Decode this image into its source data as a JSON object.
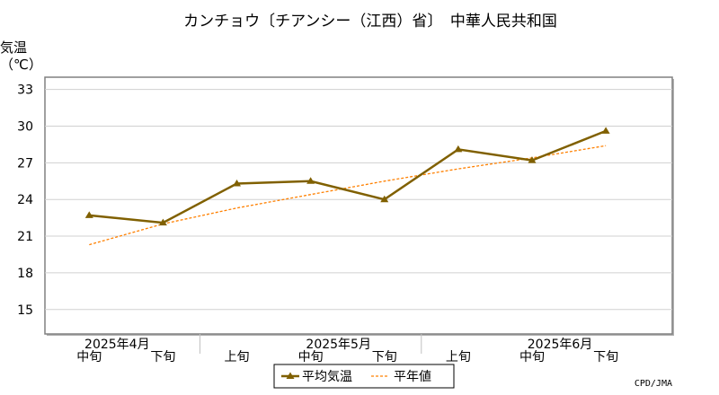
{
  "chart_data": {
    "type": "line",
    "title": "カンチョウ〔チアンシー（江西）省〕　中華人民共和国",
    "ylabel": "気温",
    "yunit": "（℃）",
    "ylim": [
      13,
      34
    ],
    "yticks": [
      15,
      18,
      21,
      24,
      27,
      30,
      33
    ],
    "grid": true,
    "categories": [
      "中旬",
      "下旬",
      "上旬",
      "中旬",
      "下旬",
      "上旬",
      "中旬",
      "下旬"
    ],
    "month_labels": [
      "2025年4月",
      "2025年5月",
      "2025年6月"
    ],
    "series": [
      {
        "name": "平均気温",
        "values": [
          22.7,
          22.1,
          25.3,
          25.5,
          24.0,
          28.1,
          27.2,
          29.6
        ],
        "color": "#806000",
        "style": "solid",
        "marker": "triangle"
      },
      {
        "name": "平年値",
        "values": [
          20.3,
          22.0,
          23.3,
          24.4,
          25.5,
          26.5,
          27.4,
          28.4
        ],
        "color": "#ff8000",
        "style": "dotted",
        "marker": "none"
      }
    ],
    "legend_position": "bottom-center",
    "credit": "CPD/JMA"
  }
}
